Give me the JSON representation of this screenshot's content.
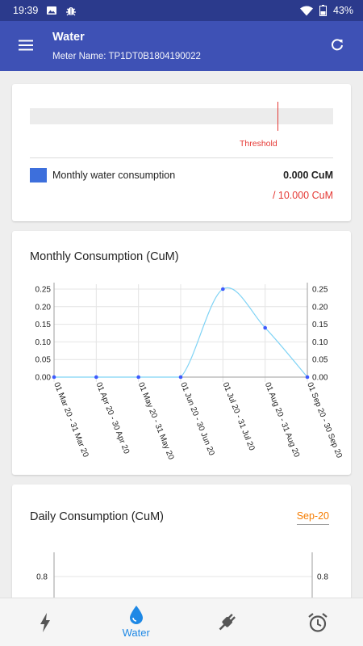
{
  "status_bar": {
    "time": "19:39",
    "battery": "43%"
  },
  "app_bar": {
    "title": "Water",
    "subtitle": "Meter Name: TP1DT0B1804190022",
    "menu_icon": "menu-icon",
    "refresh_icon": "refresh-icon"
  },
  "gauge_card": {
    "threshold_label": "Threshold",
    "legend_label": "Monthly water consumption",
    "value": "0.000 CuM",
    "limit": "/ 10.000 CuM",
    "legend_color": "#3d6fdc",
    "threshold_color": "#e53935"
  },
  "monthly_card": {
    "title": "Monthly Consumption (CuM)"
  },
  "daily_card": {
    "title": "Daily Consumption (CuM)",
    "month": "Sep-20"
  },
  "chart_data": [
    {
      "type": "line",
      "title": "Monthly Consumption (CuM)",
      "categories": [
        "01 Mar 20 - 31 Mar 20",
        "01 Apr 20 - 30 Apr 20",
        "01 May 20 - 31 May 20",
        "01 Jun 20 - 30 Jun 20",
        "01 Jul 20 - 31 Jul 20",
        "01 Aug 20 - 31 Aug 20",
        "01 Sep 20 - 30 Sep 20"
      ],
      "values": [
        0,
        0,
        0,
        0,
        0.25,
        0.14,
        0
      ],
      "ylim": [
        0,
        0.25
      ],
      "yticks": [
        0.0,
        0.05,
        0.1,
        0.15,
        0.2,
        0.25
      ],
      "ytick_labels": [
        "0.00",
        "0.05",
        "0.10",
        "0.15",
        "0.20",
        "0.25"
      ],
      "grid": true,
      "line_color": "#7fd3f5",
      "point_color": "#3d5afe"
    },
    {
      "type": "bar",
      "title": "Daily Consumption (CuM)",
      "visible_ytick_labels": [
        "0.8"
      ],
      "grid": true
    }
  ],
  "bottom_nav": {
    "items": [
      {
        "icon": "electricity-icon",
        "label": ""
      },
      {
        "icon": "water-drop-icon",
        "label": "Water"
      },
      {
        "icon": "plug-icon",
        "label": ""
      },
      {
        "icon": "alarm-clock-icon",
        "label": ""
      }
    ],
    "active_color": "#1e88e5",
    "inactive_color": "#555555"
  }
}
